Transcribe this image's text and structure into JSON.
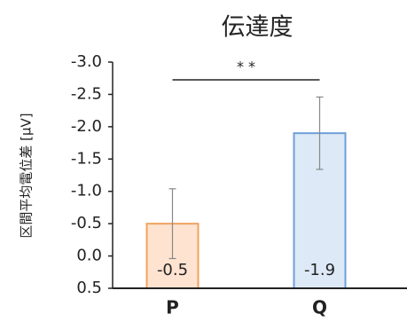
{
  "chart_data": {
    "type": "bar",
    "title": "伝達度",
    "y_label": "区間平均電位差 [μV]",
    "categories": [
      "P",
      "Q"
    ],
    "series": [
      {
        "values": [
          -0.5,
          -1.9
        ],
        "errors": [
          0.54,
          0.56
        ],
        "colors": [
          "#fde3d0",
          "#dde9f7"
        ],
        "edge_colors": [
          "#f0a35e",
          "#6f9fd8"
        ]
      }
    ],
    "ylim": [
      0.5,
      -3.0
    ],
    "yticks": [
      {
        "value": -3.0,
        "label": "-3.0"
      },
      -2.5,
      {
        "value": -2.0,
        "label": "-2.0"
      },
      -1.5,
      {
        "value": -1.0,
        "label": "-1.0"
      },
      -0.5,
      {
        "value": 0.0,
        "label": "0.0"
      },
      0.5
    ],
    "annotation": "* *"
  }
}
